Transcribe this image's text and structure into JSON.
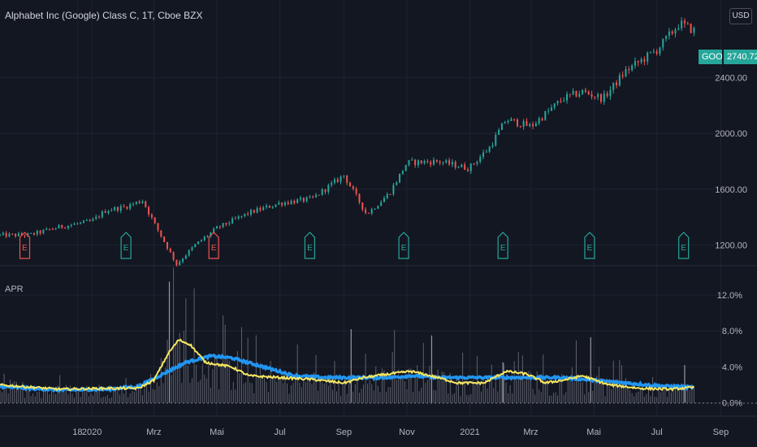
{
  "header": {
    "title": "Alphabet Inc (Google) Class C, 1T, Cboe BZX",
    "currency": "USD"
  },
  "last_price": {
    "symbol": "GOOG",
    "value": "2740.72",
    "color": "#26a69a"
  },
  "indicator": {
    "name": "APR"
  },
  "colors": {
    "background": "#131722",
    "grid": "#1f2330",
    "up": "#26a69a",
    "down": "#ef5350",
    "yellow_line": "#f5e663",
    "blue_line": "#2196f3",
    "volume_bars": "#787b86"
  },
  "chart_data": [
    {
      "type": "candlestick",
      "title": "Alphabet Inc (Google) Class C, 1T, Cboe BZX",
      "x_tick_labels": [
        "18",
        "2020",
        "Mrz",
        "Mai",
        "Jul",
        "Sep",
        "Nov",
        "2021",
        "Mrz",
        "Mai",
        "Jul",
        "Sep"
      ],
      "y_tick_labels": [
        "1200.00",
        "1600.00",
        "2000.00",
        "2400.00"
      ],
      "ylim": [
        1050,
        2900
      ],
      "price_path": [
        [
          "2019-11-01",
          1270
        ],
        [
          "2019-12-01",
          1330
        ],
        [
          "2020-01-01",
          1370
        ],
        [
          "2020-01-15",
          1450
        ],
        [
          "2020-02-01",
          1470
        ],
        [
          "2020-02-19",
          1520
        ],
        [
          "2020-03-01",
          1360
        ],
        [
          "2020-03-23",
          1060
        ],
        [
          "2020-04-10",
          1200
        ],
        [
          "2020-05-01",
          1320
        ],
        [
          "2020-06-01",
          1430
        ],
        [
          "2020-07-01",
          1500
        ],
        [
          "2020-08-01",
          1530
        ],
        [
          "2020-09-01",
          1700
        ],
        [
          "2020-09-23",
          1420
        ],
        [
          "2020-10-15",
          1570
        ],
        [
          "2020-11-01",
          1790
        ],
        [
          "2020-12-01",
          1800
        ],
        [
          "2020-12-31",
          1750
        ],
        [
          "2021-01-20",
          1900
        ],
        [
          "2021-02-05",
          2100
        ],
        [
          "2021-03-01",
          2050
        ],
        [
          "2021-04-01",
          2250
        ],
        [
          "2021-04-20",
          2300
        ],
        [
          "2021-05-10",
          2250
        ],
        [
          "2021-06-01",
          2450
        ],
        [
          "2021-07-01",
          2600
        ],
        [
          "2021-07-23",
          2790
        ],
        [
          "2021-08-06",
          2740
        ]
      ],
      "last_price": 2740.72,
      "earnings_markers": [
        {
          "date": "2019-10-28",
          "label": "E",
          "result": "miss"
        },
        {
          "date": "2020-02-03",
          "label": "E",
          "result": "beat"
        },
        {
          "date": "2020-04-28",
          "label": "E",
          "result": "miss"
        },
        {
          "date": "2020-07-30",
          "label": "E",
          "result": "beat"
        },
        {
          "date": "2020-10-29",
          "label": "E",
          "result": "beat"
        },
        {
          "date": "2021-02-02",
          "label": "E",
          "result": "beat"
        },
        {
          "date": "2021-04-27",
          "label": "E",
          "result": "beat"
        },
        {
          "date": "2021-07-27",
          "label": "E",
          "result": "beat"
        }
      ]
    },
    {
      "type": "line",
      "title": "APR",
      "y_tick_labels": [
        "0.0%",
        "4.0%",
        "8.0%",
        "12.0%"
      ],
      "ylim": [
        -1.5,
        15
      ],
      "series": [
        {
          "values_date_pct": [
            [
              "2019-10-01",
              2.0
            ],
            [
              "2019-12-01",
              1.5
            ],
            [
              "2020-01-15",
              1.6
            ],
            [
              "2020-02-15",
              1.6
            ],
            [
              "2020-03-01",
              2.5
            ],
            [
              "2020-03-15",
              5.5
            ],
            [
              "2020-03-25",
              7.0
            ],
            [
              "2020-04-05",
              6.5
            ],
            [
              "2020-04-20",
              4.5
            ],
            [
              "2020-05-15",
              4.0
            ],
            [
              "2020-06-01",
              3.0
            ],
            [
              "2020-07-01",
              2.8
            ],
            [
              "2020-08-01",
              2.6
            ],
            [
              "2020-09-01",
              2.2
            ],
            [
              "2020-09-20",
              2.8
            ],
            [
              "2020-10-15",
              3.2
            ],
            [
              "2020-11-05",
              3.5
            ],
            [
              "2020-12-01",
              2.8
            ],
            [
              "2020-12-20",
              2.2
            ],
            [
              "2021-01-15",
              2.2
            ],
            [
              "2021-02-05",
              3.5
            ],
            [
              "2021-02-25",
              3.2
            ],
            [
              "2021-03-15",
              2.2
            ],
            [
              "2021-04-01",
              2.5
            ],
            [
              "2021-04-20",
              3.0
            ],
            [
              "2021-05-15",
              2.0
            ],
            [
              "2021-06-15",
              1.6
            ],
            [
              "2021-07-15",
              1.5
            ],
            [
              "2021-08-06",
              1.7
            ]
          ]
        },
        {
          "values_date_pct": [
            [
              "2019-10-01",
              1.8
            ],
            [
              "2019-12-01",
              1.4
            ],
            [
              "2020-01-15",
              1.5
            ],
            [
              "2020-02-15",
              1.8
            ],
            [
              "2020-03-15",
              3.5
            ],
            [
              "2020-04-01",
              4.5
            ],
            [
              "2020-04-25",
              5.2
            ],
            [
              "2020-05-15",
              5.0
            ],
            [
              "2020-06-15",
              4.0
            ],
            [
              "2020-07-15",
              3.0
            ],
            [
              "2020-08-15",
              2.8
            ],
            [
              "2020-09-15",
              2.8
            ],
            [
              "2020-10-15",
              2.8
            ],
            [
              "2020-11-05",
              3.0
            ],
            [
              "2020-12-01",
              2.8
            ],
            [
              "2021-01-01",
              2.8
            ],
            [
              "2021-02-01",
              2.8
            ],
            [
              "2021-03-01",
              2.8
            ],
            [
              "2021-04-01",
              2.8
            ],
            [
              "2021-05-01",
              2.5
            ],
            [
              "2021-06-01",
              2.2
            ],
            [
              "2021-07-01",
              1.9
            ],
            [
              "2021-08-06",
              1.7
            ]
          ]
        }
      ],
      "bars": "daily_range_histogram",
      "bar_notable_pct": [
        [
          "2020-03-16",
          13.5
        ],
        [
          "2020-09-08",
          8.2
        ],
        [
          "2020-11-25",
          7.5
        ],
        [
          "2021-02-02",
          4.5
        ],
        [
          "2021-04-28",
          7.3
        ],
        [
          "2021-07-28",
          4.2
        ]
      ]
    }
  ]
}
